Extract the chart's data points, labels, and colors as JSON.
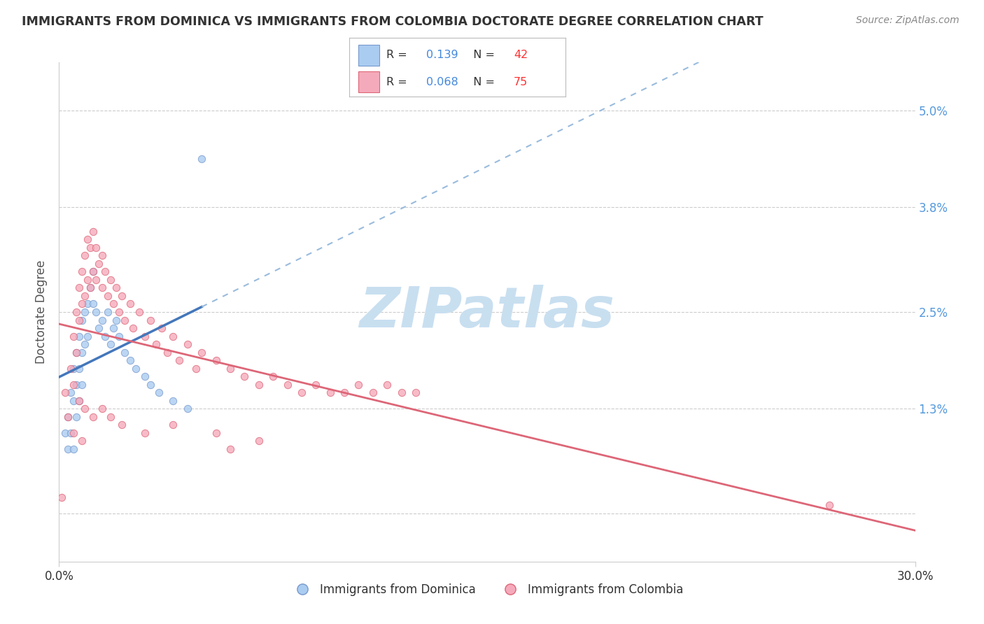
{
  "title": "IMMIGRANTS FROM DOMINICA VS IMMIGRANTS FROM COLOMBIA DOCTORATE DEGREE CORRELATION CHART",
  "source": "Source: ZipAtlas.com",
  "ylabel": "Doctorate Degree",
  "yticks_labels": [
    "",
    "1.3%",
    "2.5%",
    "3.8%",
    "5.0%"
  ],
  "ytick_vals": [
    0.0,
    0.013,
    0.025,
    0.038,
    0.05
  ],
  "xmin": 0.0,
  "xmax": 0.3,
  "ymin": -0.006,
  "ymax": 0.056,
  "series": [
    {
      "name": "Immigrants from Dominica",
      "R": 0.139,
      "N": 42,
      "color": "#aaccf0",
      "edge_color": "#7799cc",
      "trend_color": "#4477bb",
      "trend_dashed_color": "#99bbdd",
      "x": [
        0.002,
        0.003,
        0.003,
        0.004,
        0.004,
        0.005,
        0.005,
        0.005,
        0.006,
        0.006,
        0.006,
        0.007,
        0.007,
        0.007,
        0.008,
        0.008,
        0.008,
        0.009,
        0.009,
        0.01,
        0.01,
        0.011,
        0.012,
        0.012,
        0.013,
        0.014,
        0.015,
        0.016,
        0.017,
        0.018,
        0.019,
        0.02,
        0.021,
        0.023,
        0.025,
        0.027,
        0.03,
        0.032,
        0.035,
        0.04,
        0.045,
        0.05
      ],
      "y": [
        0.01,
        0.012,
        0.008,
        0.015,
        0.01,
        0.018,
        0.014,
        0.008,
        0.02,
        0.016,
        0.012,
        0.022,
        0.018,
        0.014,
        0.024,
        0.02,
        0.016,
        0.025,
        0.021,
        0.026,
        0.022,
        0.028,
        0.03,
        0.026,
        0.025,
        0.023,
        0.024,
        0.022,
        0.025,
        0.021,
        0.023,
        0.024,
        0.022,
        0.02,
        0.019,
        0.018,
        0.017,
        0.016,
        0.015,
        0.014,
        0.013,
        0.044
      ]
    },
    {
      "name": "Immigrants from Colombia",
      "R": 0.068,
      "N": 75,
      "color": "#f5aabb",
      "edge_color": "#dd6677",
      "trend_color": "#dd6677",
      "x": [
        0.002,
        0.003,
        0.004,
        0.005,
        0.005,
        0.006,
        0.006,
        0.007,
        0.007,
        0.008,
        0.008,
        0.009,
        0.009,
        0.01,
        0.01,
        0.011,
        0.011,
        0.012,
        0.012,
        0.013,
        0.013,
        0.014,
        0.015,
        0.015,
        0.016,
        0.017,
        0.018,
        0.019,
        0.02,
        0.021,
        0.022,
        0.023,
        0.025,
        0.026,
        0.028,
        0.03,
        0.032,
        0.034,
        0.036,
        0.038,
        0.04,
        0.042,
        0.045,
        0.048,
        0.05,
        0.055,
        0.06,
        0.065,
        0.07,
        0.075,
        0.08,
        0.085,
        0.09,
        0.095,
        0.1,
        0.105,
        0.11,
        0.115,
        0.12,
        0.125,
        0.007,
        0.009,
        0.012,
        0.015,
        0.018,
        0.022,
        0.03,
        0.04,
        0.055,
        0.07,
        0.005,
        0.008,
        0.06,
        0.27,
        0.001
      ],
      "y": [
        0.015,
        0.012,
        0.018,
        0.022,
        0.016,
        0.025,
        0.02,
        0.028,
        0.024,
        0.03,
        0.026,
        0.032,
        0.027,
        0.034,
        0.029,
        0.033,
        0.028,
        0.035,
        0.03,
        0.033,
        0.029,
        0.031,
        0.032,
        0.028,
        0.03,
        0.027,
        0.029,
        0.026,
        0.028,
        0.025,
        0.027,
        0.024,
        0.026,
        0.023,
        0.025,
        0.022,
        0.024,
        0.021,
        0.023,
        0.02,
        0.022,
        0.019,
        0.021,
        0.018,
        0.02,
        0.019,
        0.018,
        0.017,
        0.016,
        0.017,
        0.016,
        0.015,
        0.016,
        0.015,
        0.015,
        0.016,
        0.015,
        0.016,
        0.015,
        0.015,
        0.014,
        0.013,
        0.012,
        0.013,
        0.012,
        0.011,
        0.01,
        0.011,
        0.01,
        0.009,
        0.01,
        0.009,
        0.008,
        0.001,
        0.002
      ]
    }
  ],
  "background_color": "#ffffff",
  "grid_color": "#cccccc",
  "watermark_text": "ZIPatlas",
  "watermark_color": "#c8dff0",
  "legend_R_color": "#4488dd",
  "legend_N_color": "#ff3333",
  "legend_label_color": "#333333",
  "title_color": "#333333",
  "source_color": "#888888",
  "ylabel_color": "#555555",
  "ytick_color": "#5599dd",
  "xtick_color": "#333333"
}
